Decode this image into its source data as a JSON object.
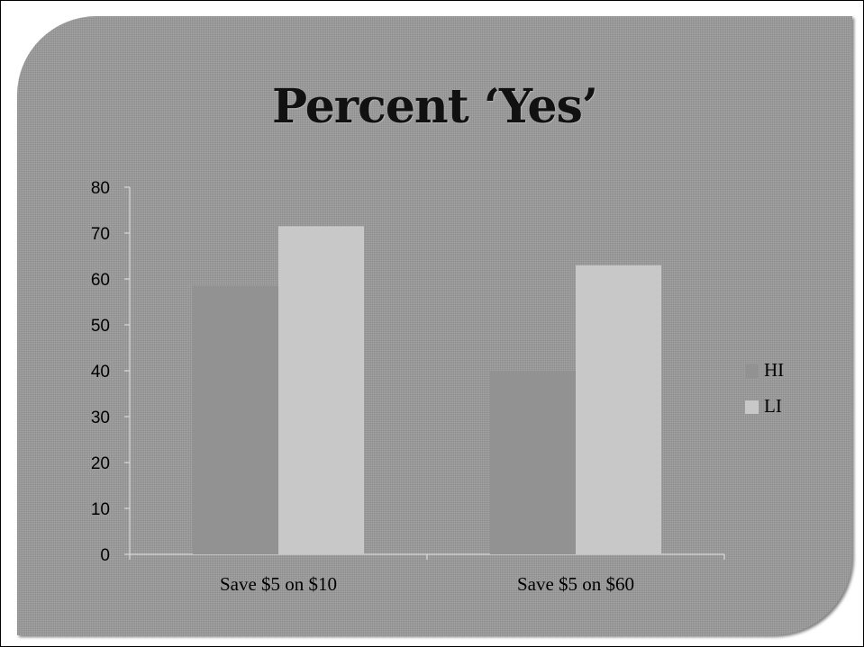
{
  "chart_data": {
    "type": "bar",
    "title": "Percent ‘Yes’",
    "categories": [
      "Save $5 on $10",
      "Save $5 on $60"
    ],
    "series": [
      {
        "name": "HI",
        "values": [
          58.5,
          40
        ],
        "color": "#929292"
      },
      {
        "name": "LI",
        "values": [
          71.5,
          63
        ],
        "color": "#c8c8c8"
      }
    ],
    "yticks": [
      0,
      10,
      20,
      30,
      40,
      50,
      60,
      70,
      80
    ],
    "ylim": [
      0,
      80
    ],
    "xlabel": "",
    "ylabel": "",
    "grid": false,
    "legend_position": "right"
  }
}
